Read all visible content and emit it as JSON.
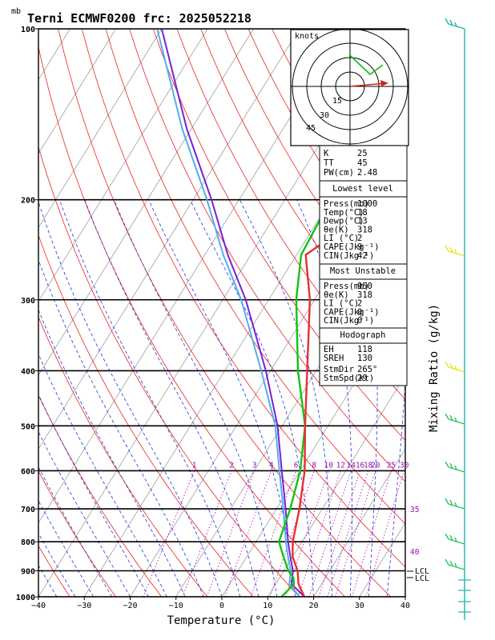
{
  "title": "Terni ECMWF0200  frc: 2025052218",
  "pressure_unit_label": "mb",
  "xlabel": "Temperature (°C)",
  "right_label": "Mixing Ratio (g/kg)",
  "lcl_labels": [
    "LCL",
    "LCL"
  ],
  "hodograph": {
    "units_label": "knots",
    "ring_labels": [
      "15",
      "30",
      "45"
    ],
    "storm_arrow_color": "#d42020",
    "trace_color": "#11bb11"
  },
  "indices": {
    "top": [
      {
        "label": "K",
        "value": "25"
      },
      {
        "label": "TT",
        "value": "45"
      },
      {
        "label": "PW(cm)",
        "value": "2.48"
      }
    ],
    "lowest_level": {
      "header": "Lowest level",
      "rows": [
        {
          "label": "Press(mb)",
          "value": "1000"
        },
        {
          "label": "Temp(°C)",
          "value": "18"
        },
        {
          "label": "Dewp(°C)",
          "value": "13"
        },
        {
          "label": "θe(K)",
          "value": "318"
        },
        {
          "label": "LI (°C)",
          "value": "2"
        },
        {
          "label": "CAPE(Jkg⁻¹)",
          "value": "9"
        },
        {
          "label": "CIN(Jkg⁻¹)",
          "value": "42"
        }
      ]
    },
    "most_unstable": {
      "header": "Most Unstable",
      "rows": [
        {
          "label": "Press(mb)",
          "value": "950"
        },
        {
          "label": "θe(K)",
          "value": "318"
        },
        {
          "label": "LI (°C)",
          "value": "2"
        },
        {
          "label": "CAPE(Jkg⁻¹)",
          "value": "0"
        },
        {
          "label": "CIN(Jkg⁻¹)",
          "value": "0"
        }
      ]
    },
    "hodograph_block": {
      "header": "Hodograph",
      "rows": [
        {
          "label": "EH",
          "value": "118"
        },
        {
          "label": "SREH",
          "value": "130"
        },
        {
          "label": "StmDir",
          "value": "265°"
        },
        {
          "label": "StmSpd(kt)",
          "value": "29"
        }
      ]
    }
  },
  "chart_data": {
    "type": "line",
    "title": "Terni ECMWF0200  frc: 2025052218",
    "xlabel": "Temperature (°C)",
    "ylabel": "mb",
    "xlim": [
      -40,
      40
    ],
    "ylim": [
      1000,
      100
    ],
    "y_scale": "log",
    "x_ticks": [
      -40,
      -30,
      -20,
      -10,
      0,
      10,
      20,
      30,
      40
    ],
    "y_ticks": [
      1000,
      900,
      800,
      700,
      600,
      500,
      400,
      300,
      200,
      100
    ],
    "mixing_ratio_labels": [
      "1",
      "2",
      "3",
      "4",
      "6",
      "8",
      "10",
      "12",
      "14",
      "16",
      "18",
      "20",
      "25",
      "30"
    ],
    "mixing_ratio_values": [
      1,
      2,
      3,
      4,
      6,
      8,
      10,
      12,
      14,
      16,
      18,
      20,
      25,
      30
    ],
    "theta_e_labels": [
      "35",
      "40"
    ],
    "colors": {
      "temperature": "#e53030",
      "dewpoint": "#11c411",
      "parcel": "#7a1fd6",
      "virtual": "#4fb0e6",
      "isotherms": "#9e9e9e",
      "dry_adiabats": "#ee2222",
      "moist_adiabats": "#2233dd",
      "mixing_ratio": "#c010c0",
      "barbs_upper": "#1ab5a8",
      "barbs_lower": "#2bc45a",
      "barb_highlight": "#e6e61a"
    },
    "series": [
      {
        "name": "Temperature",
        "points": [
          [
            18,
            1000
          ],
          [
            15,
            950
          ],
          [
            13,
            900
          ],
          [
            10,
            850
          ],
          [
            8,
            800
          ],
          [
            5,
            700
          ],
          [
            1,
            600
          ],
          [
            -5,
            500
          ],
          [
            -12,
            400
          ],
          [
            -21,
            300
          ],
          [
            -28,
            250
          ],
          [
            -18,
            200
          ],
          [
            0,
            150
          ],
          [
            15,
            100
          ]
        ]
      },
      {
        "name": "Dewpoint",
        "points": [
          [
            13,
            1000
          ],
          [
            14,
            950
          ],
          [
            13,
            925
          ],
          [
            11,
            900
          ],
          [
            8,
            850
          ],
          [
            5,
            800
          ],
          [
            3,
            700
          ],
          [
            0,
            600
          ],
          [
            -5,
            500
          ],
          [
            -14,
            400
          ],
          [
            -24,
            300
          ],
          [
            -29,
            250
          ],
          [
            -30,
            200
          ],
          [
            -32,
            150
          ],
          [
            -35,
            100
          ]
        ]
      },
      {
        "name": "Parcel",
        "points": [
          [
            18,
            1000
          ],
          [
            13.5,
            950
          ],
          [
            12,
            900
          ],
          [
            9.5,
            850
          ],
          [
            7,
            800
          ],
          [
            2,
            700
          ],
          [
            -4,
            600
          ],
          [
            -11,
            500
          ],
          [
            -21,
            400
          ],
          [
            -35,
            300
          ],
          [
            -45,
            250
          ],
          [
            -56,
            200
          ],
          [
            -71,
            150
          ],
          [
            -90,
            100
          ]
        ]
      },
      {
        "name": "Virtual",
        "points": [
          [
            17,
            1000
          ],
          [
            13,
            950
          ],
          [
            11.5,
            900
          ],
          [
            9,
            850
          ],
          [
            6.5,
            800
          ],
          [
            1.5,
            700
          ],
          [
            -4.5,
            600
          ],
          [
            -11.5,
            500
          ],
          [
            -22,
            400
          ],
          [
            -36,
            300
          ],
          [
            -46,
            250
          ],
          [
            -57,
            200
          ],
          [
            -72,
            150
          ],
          [
            -91,
            100
          ]
        ]
      }
    ]
  }
}
